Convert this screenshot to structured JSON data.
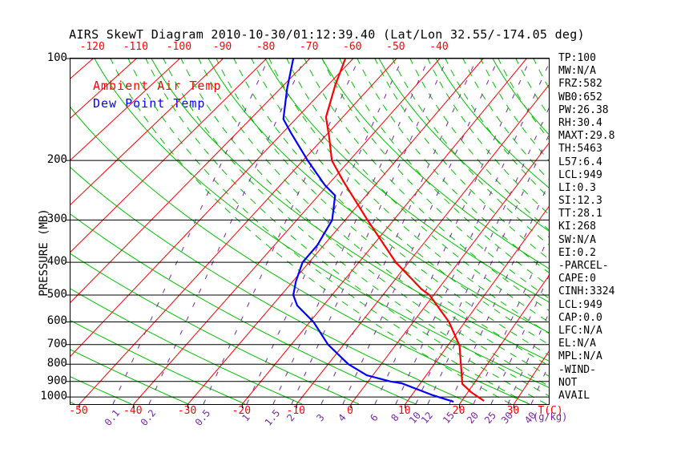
{
  "title": "AIRS SkewT Diagram 2010-10-30/01:12:39.40 (Lat/Lon 32.55/-174.05 deg)",
  "colors": {
    "temperature": "#ff0000",
    "dewpoint": "#0000ff",
    "isotherm": "#ff0000",
    "adiabat": "#00c000",
    "mixing_ratio": "#7526a8",
    "axis": "#000000"
  },
  "legend": {
    "ambient_label": "Ambient Air Temp",
    "dew_label": "Dew Point Temp"
  },
  "axes": {
    "left_title": "PRESSURE (MB)",
    "pressure_levels": [
      100,
      200,
      300,
      400,
      500,
      600,
      700,
      800,
      900,
      1000
    ],
    "top_temp_labels": [
      -120,
      -110,
      -100,
      -90,
      -80,
      -70,
      -60,
      -50,
      -40
    ],
    "bottom_temp_labels": [
      -50,
      -40,
      -30,
      -20,
      -10,
      0,
      10,
      20,
      30
    ],
    "bottom_temp_unit": "T(C)",
    "mixing_ratio_labels": [
      "0.1",
      "0.2",
      "0.5",
      "1",
      "1.5",
      "2",
      "3",
      "4",
      "6",
      "8",
      "10",
      "12",
      "15",
      "20",
      "25",
      "30",
      "40"
    ],
    "mixing_ratio_unit": "(g/kg)"
  },
  "stats_panel": {
    "rows": [
      "TP:100",
      "MW:N/A",
      "FRZ:582",
      "WB0:652",
      "PW:26.38",
      "RH:30.4",
      "MAXT:29.8",
      "TH:5463",
      "L57:6.4",
      "LCL:949",
      "LI:0.3",
      "SI:12.3",
      "TT:28.1",
      "KI:268",
      "SW:N/A",
      "EI:0.2",
      "-PARCEL-",
      "CAPE:0",
      "CINH:3324",
      "LCL:949",
      "CAP:0.0",
      "LFC:N/A",
      "EL:N/A",
      "MPL:N/A",
      "-WIND-",
      "NOT",
      "AVAIL"
    ]
  },
  "chart_data": {
    "type": "line",
    "title": "AIRS SkewT Diagram 2010-10-30/01:12:39.40 (Lat/Lon 32.55/-174.05 deg)",
    "xlabel": "T(C)",
    "ylabel": "PRESSURE (MB)",
    "y_axis": {
      "scale": "log",
      "range": [
        100,
        1050
      ],
      "levels": [
        100,
        200,
        300,
        400,
        500,
        600,
        700,
        800,
        900,
        1000
      ]
    },
    "x_axis": {
      "top_tick_labels": [
        -120,
        -110,
        -100,
        -90,
        -80,
        -70,
        -60,
        -50,
        -40
      ],
      "bottom_tick_labels": [
        -50,
        -40,
        -30,
        -20,
        -10,
        0,
        10,
        20,
        30
      ]
    },
    "mixing_ratio_lines_g_per_kg": [
      0.1,
      0.2,
      0.5,
      1,
      1.5,
      2,
      3,
      4,
      6,
      8,
      10,
      12,
      15,
      20,
      25,
      30,
      40
    ],
    "grid": [
      "isotherms",
      "dry adiabats",
      "moist adiabats",
      "mixing ratio lines"
    ],
    "legend_position": "top-left",
    "series": [
      {
        "name": "Ambient Air Temp",
        "color": "#ff0000",
        "points": [
          {
            "p": 100,
            "t": -61.8
          },
          {
            "p": 120,
            "t": -58.3
          },
          {
            "p": 149,
            "t": -53.7
          },
          {
            "p": 171,
            "t": -48.9
          },
          {
            "p": 200,
            "t": -43.8
          },
          {
            "p": 230,
            "t": -37.5
          },
          {
            "p": 300,
            "t": -25.4
          },
          {
            "p": 400,
            "t": -12.6
          },
          {
            "p": 480,
            "t": -3.3
          },
          {
            "p": 500,
            "t": -0.8
          },
          {
            "p": 600,
            "t": 6.9
          },
          {
            "p": 700,
            "t": 12.0
          },
          {
            "p": 707,
            "t": 12.3
          },
          {
            "p": 915,
            "t": 17.9
          },
          {
            "p": 968,
            "t": 20.6
          },
          {
            "p": 1027,
            "t": 24.1
          }
        ]
      },
      {
        "name": "Dew Point Temp",
        "color": "#0000ff",
        "points": [
          {
            "p": 100,
            "t": -73.8
          },
          {
            "p": 123,
            "t": -68.4
          },
          {
            "p": 151,
            "t": -62.7
          },
          {
            "p": 166,
            "t": -58.1
          },
          {
            "p": 200,
            "t": -49.0
          },
          {
            "p": 237,
            "t": -40.5
          },
          {
            "p": 254,
            "t": -36.5
          },
          {
            "p": 300,
            "t": -32.7
          },
          {
            "p": 356,
            "t": -31.3
          },
          {
            "p": 400,
            "t": -31.3
          },
          {
            "p": 455,
            "t": -29.4
          },
          {
            "p": 500,
            "t": -27.6
          },
          {
            "p": 537,
            "t": -25.1
          },
          {
            "p": 600,
            "t": -19.3
          },
          {
            "p": 700,
            "t": -13.0
          },
          {
            "p": 800,
            "t": -6.2
          },
          {
            "p": 863,
            "t": -1.1
          },
          {
            "p": 900,
            "t": 4.2
          },
          {
            "p": 911,
            "t": 6.5
          },
          {
            "p": 989,
            "t": 14.0
          },
          {
            "p": 1033,
            "t": 18.6
          }
        ]
      }
    ]
  }
}
